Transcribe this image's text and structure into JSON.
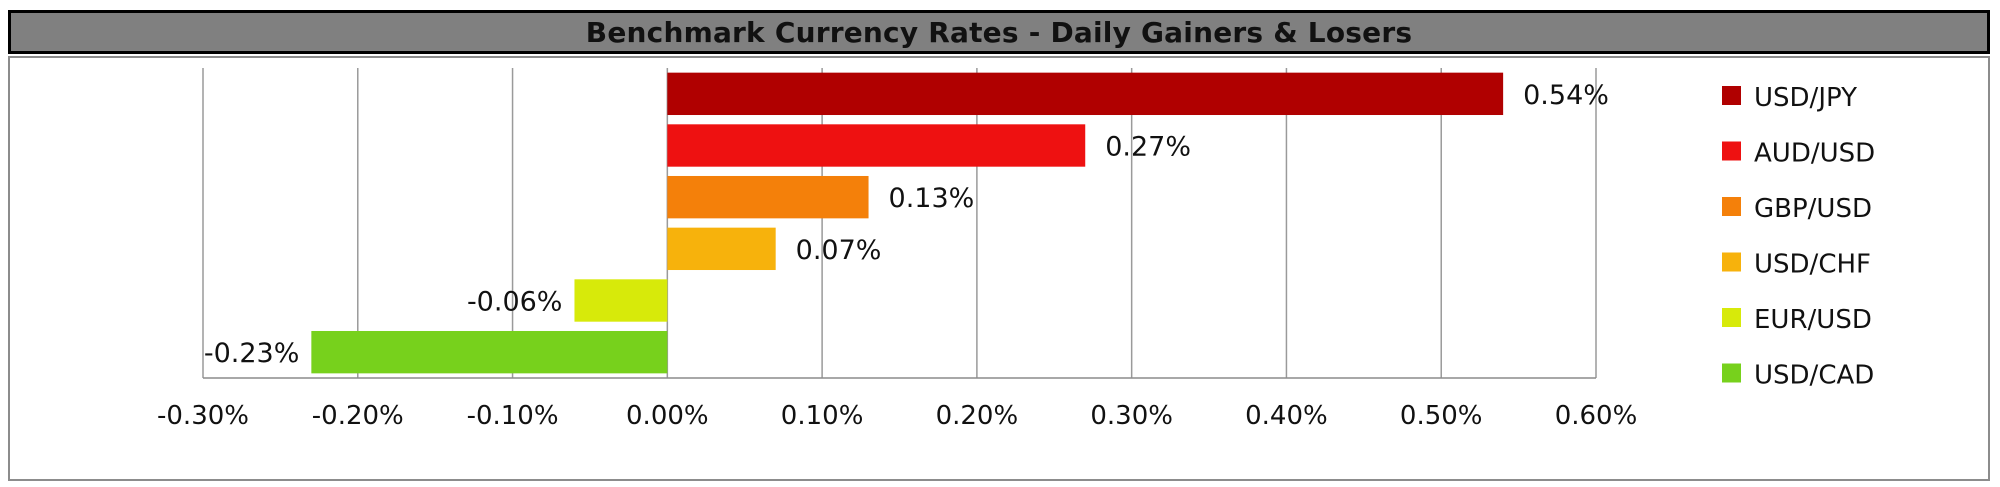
{
  "title": "Benchmark Currency Rates - Daily Gainers & Losers",
  "chart_data": {
    "type": "bar",
    "orientation": "horizontal",
    "title": "Benchmark Currency Rates - Daily Gainers & Losers",
    "xlabel": "",
    "ylabel": "",
    "xlim": [
      -0.3,
      0.6
    ],
    "x_ticks": [
      -0.3,
      -0.2,
      -0.1,
      0.0,
      0.1,
      0.2,
      0.3,
      0.4,
      0.5,
      0.6
    ],
    "x_tick_labels": [
      "-0.30%",
      "-0.20%",
      "-0.10%",
      "0.00%",
      "0.10%",
      "0.20%",
      "0.30%",
      "0.40%",
      "0.50%",
      "0.60%"
    ],
    "grid": "vertical",
    "legend_position": "right",
    "series": [
      {
        "name": "USD/JPY",
        "value": 0.54,
        "label": "0.54%",
        "color": "#b00000"
      },
      {
        "name": "AUD/USD",
        "value": 0.27,
        "label": "0.27%",
        "color": "#ee1111"
      },
      {
        "name": "GBP/USD",
        "value": 0.13,
        "label": "0.13%",
        "color": "#f4800a"
      },
      {
        "name": "USD/CHF",
        "value": 0.07,
        "label": "0.07%",
        "color": "#f7b20c"
      },
      {
        "name": "EUR/USD",
        "value": -0.06,
        "label": "-0.06%",
        "color": "#d7ea0a"
      },
      {
        "name": "USD/CAD",
        "value": -0.23,
        "label": "-0.23%",
        "color": "#77d11c"
      }
    ]
  },
  "colors": {
    "title_bar": "#808080",
    "grid": "#9a9a9a",
    "axis": "#8c8c8c"
  }
}
